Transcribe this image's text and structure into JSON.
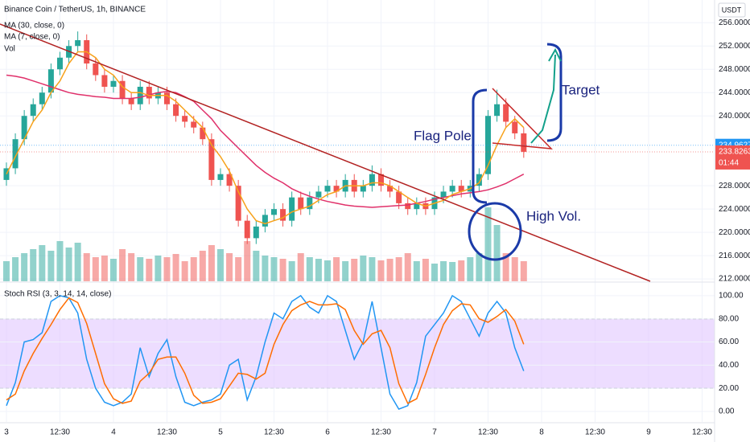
{
  "chart_data": [
    {
      "type": "candlestick",
      "title": "Binance Coin / TetherUS, 1h, BINANCE",
      "volume_label": "Vol",
      "axis_unit": "USDT",
      "x": [
        0,
        2,
        4,
        6,
        8,
        10,
        12,
        14,
        16,
        18,
        20,
        22,
        24,
        26,
        28,
        30,
        32,
        34,
        36,
        38,
        40,
        42,
        44,
        46,
        48,
        50,
        52,
        54,
        56,
        58,
        60,
        62,
        64,
        66,
        68,
        70,
        72,
        74,
        76,
        78,
        80,
        82,
        84,
        86,
        88,
        90,
        92,
        94,
        96,
        98,
        100,
        102,
        104,
        106,
        108,
        110,
        112,
        114,
        116
      ],
      "open": [
        229,
        231,
        236,
        240,
        242,
        244,
        248,
        250,
        252,
        253,
        249,
        247,
        245,
        246,
        243,
        242,
        245,
        243,
        244,
        242,
        240,
        239,
        238,
        236,
        229,
        230,
        228,
        222,
        219,
        221,
        223,
        224,
        222,
        226,
        224,
        226,
        227,
        228,
        227,
        229,
        227,
        228,
        230,
        228,
        227,
        225,
        224,
        225,
        224,
        226,
        227,
        228,
        227,
        228,
        230,
        240,
        242,
        239,
        237
      ],
      "high": [
        232,
        237,
        241,
        243,
        245,
        249,
        251,
        253,
        254.5,
        254,
        250,
        248,
        247,
        247,
        244,
        246,
        246,
        245,
        245,
        243,
        241,
        240,
        239,
        237,
        231,
        231,
        229,
        223,
        222,
        224,
        225,
        225,
        227,
        227,
        227,
        228,
        229,
        229,
        230,
        230,
        229,
        231.5,
        231,
        229,
        228,
        226,
        226,
        226,
        227,
        228,
        229,
        229,
        229,
        231,
        241,
        244.5,
        243,
        240,
        238
      ],
      "low": [
        228,
        230,
        235,
        239,
        241,
        243,
        247,
        249,
        251,
        248,
        246,
        244,
        244,
        242,
        241,
        241,
        242,
        242,
        241,
        239,
        238,
        237,
        235,
        228,
        228,
        227,
        221,
        218,
        218,
        220,
        222,
        221,
        221,
        223,
        223,
        225,
        226,
        226,
        226,
        226,
        226,
        227,
        227,
        226,
        224,
        223,
        223,
        223,
        223,
        225,
        226,
        226,
        226,
        227,
        229,
        239,
        238,
        236,
        232.8
      ],
      "close": [
        231,
        236,
        240,
        242,
        244,
        248,
        250,
        252,
        253,
        249,
        247,
        245,
        246,
        243,
        242,
        245,
        243,
        244,
        242,
        240,
        239,
        238,
        236,
        229,
        230,
        228,
        222,
        219,
        221,
        223,
        224,
        222,
        226,
        224,
        226,
        227,
        228,
        227,
        229,
        227,
        228,
        230,
        228,
        227,
        225,
        224,
        225,
        224,
        226,
        227,
        228,
        227,
        228,
        230,
        240,
        242,
        239,
        237,
        233.83
      ],
      "volume": [
        25,
        30,
        35,
        40,
        45,
        38,
        50,
        42,
        48,
        35,
        30,
        32,
        28,
        40,
        35,
        30,
        28,
        32,
        30,
        34,
        25,
        30,
        38,
        45,
        40,
        35,
        30,
        50,
        38,
        32,
        30,
        28,
        25,
        35,
        30,
        28,
        26,
        30,
        25,
        28,
        32,
        30,
        26,
        28,
        30,
        35,
        25,
        28,
        22,
        25,
        24,
        26,
        30,
        35,
        92,
        70,
        35,
        30,
        25
      ],
      "series": [
        {
          "name": "MA (30, close, 0)",
          "color": "#e0306a",
          "values": [
            247,
            246.8,
            246.5,
            246,
            245.5,
            245,
            244.5,
            244,
            243.7,
            243.5,
            243.3,
            243.2,
            243,
            243,
            243,
            243.2,
            243.6,
            244,
            244.2,
            244,
            243.3,
            242.5,
            241,
            239.5,
            237.5,
            236,
            234.5,
            233,
            231.5,
            230.3,
            229.3,
            228.5,
            227.5,
            226.8,
            226.2,
            225.7,
            225.3,
            225,
            224.7,
            224.5,
            224.4,
            224.3,
            224.4,
            224.5,
            224.6,
            224.7,
            225,
            225.3,
            225.7,
            226,
            226.3,
            226.6,
            226.8,
            227,
            227.3,
            227.8,
            228.4,
            229.2,
            230
          ]
        },
        {
          "name": "MA (7, close, 0)",
          "color": "#f7a21b",
          "values": [
            230,
            233,
            236,
            239,
            241,
            244,
            246,
            249,
            251,
            251,
            250,
            248,
            247,
            245,
            244,
            244,
            243.5,
            243.5,
            243.5,
            242.5,
            241,
            239.5,
            238,
            235,
            233,
            230.5,
            227,
            224,
            222,
            221.5,
            222,
            222.5,
            223.5,
            224,
            224.5,
            225.5,
            226.5,
            227,
            228,
            228,
            228,
            228.5,
            228.5,
            228,
            227,
            226,
            225,
            224.5,
            225,
            225.5,
            226.5,
            227,
            227.5,
            228.5,
            231.5,
            235,
            238,
            239.5,
            238
          ]
        }
      ],
      "up_color": "#26a69a",
      "down_color": "#ef5350",
      "xlim": [
        -1.44,
        158.8
      ],
      "xticks": [
        {
          "value": 0,
          "label": "3"
        },
        {
          "value": 12,
          "label": "12:30"
        },
        {
          "value": 24,
          "label": "4"
        },
        {
          "value": 36,
          "label": "12:30"
        },
        {
          "value": 48,
          "label": "5"
        },
        {
          "value": 60,
          "label": "12:30"
        },
        {
          "value": 72,
          "label": "6"
        },
        {
          "value": 84,
          "label": "12:30"
        },
        {
          "value": 96,
          "label": "7"
        },
        {
          "value": 108,
          "label": "12:30"
        },
        {
          "value": 120,
          "label": "8"
        },
        {
          "value": 132,
          "label": "12:30"
        },
        {
          "value": 144,
          "label": "9"
        },
        {
          "value": 156,
          "label": "12:30"
        }
      ],
      "ylim": [
        211.6,
        259.9
      ],
      "yticks": [
        {
          "value": 256,
          "label": "256.0000"
        },
        {
          "value": 252,
          "label": "252.0000"
        },
        {
          "value": 248,
          "label": "248.0000"
        },
        {
          "value": 244,
          "label": "244.0000"
        },
        {
          "value": 240,
          "label": "240.0000"
        },
        {
          "value": 228,
          "label": "228.0000"
        },
        {
          "value": 224,
          "label": "224.0000"
        },
        {
          "value": 220,
          "label": "220.0000"
        },
        {
          "value": 216,
          "label": "216.0000"
        },
        {
          "value": 212,
          "label": "212.0000"
        }
      ],
      "price_labels": [
        {
          "value": 234.9627,
          "color": "#2196f3"
        },
        {
          "value": 233.8263,
          "color": "#ef5350",
          "countdown": "01:44"
        }
      ],
      "annotations": [
        "Flag Pole",
        "Target",
        "High Vol."
      ],
      "grid": true
    },
    {
      "type": "line",
      "title": "Stoch RSI (3, 3, 14, 14, close)",
      "x": [
        0,
        2,
        4,
        6,
        8,
        10,
        12,
        14,
        16,
        18,
        20,
        22,
        24,
        26,
        28,
        30,
        32,
        34,
        36,
        38,
        40,
        42,
        44,
        46,
        48,
        50,
        52,
        54,
        56,
        58,
        60,
        62,
        64,
        66,
        68,
        70,
        72,
        74,
        76,
        78,
        80,
        82,
        84,
        86,
        88,
        90,
        92,
        94,
        96,
        98,
        100,
        102,
        104,
        106,
        108,
        110,
        112,
        114,
        116
      ],
      "series": [
        {
          "color": "#2196f3",
          "values": [
            5,
            25,
            60,
            62,
            68,
            95,
            100,
            98,
            85,
            45,
            20,
            8,
            5,
            8,
            15,
            55,
            30,
            50,
            62,
            30,
            8,
            5,
            8,
            10,
            15,
            40,
            45,
            10,
            30,
            60,
            85,
            80,
            95,
            100,
            90,
            85,
            100,
            95,
            70,
            45,
            60,
            95,
            55,
            15,
            2,
            5,
            25,
            65,
            75,
            85,
            100,
            95,
            80,
            65,
            85,
            95,
            85,
            55,
            35
          ]
        },
        {
          "color": "#ff6d00",
          "values": [
            10,
            15,
            35,
            50,
            63,
            75,
            88,
            98,
            94,
            76,
            50,
            24,
            11,
            7,
            9,
            26,
            33,
            45,
            47,
            47,
            33,
            14,
            7,
            8,
            11,
            22,
            33,
            32,
            28,
            33,
            58,
            75,
            87,
            92,
            95,
            92,
            92,
            93,
            88,
            70,
            58,
            67,
            70,
            55,
            24,
            7,
            11,
            32,
            55,
            75,
            87,
            93,
            92,
            80,
            77,
            82,
            88,
            78,
            58
          ]
        }
      ],
      "ylim": [
        -9,
        111
      ],
      "yticks": [
        {
          "value": 100,
          "label": "100.00"
        },
        {
          "value": 80,
          "label": "80.00"
        },
        {
          "value": 60,
          "label": "60.00"
        },
        {
          "value": 40,
          "label": "40.00"
        },
        {
          "value": 20,
          "label": "20.00"
        },
        {
          "value": 0,
          "label": "0.00"
        }
      ],
      "band": [
        20,
        80
      ],
      "band_color": "#e1c6ff",
      "grid": true
    }
  ]
}
